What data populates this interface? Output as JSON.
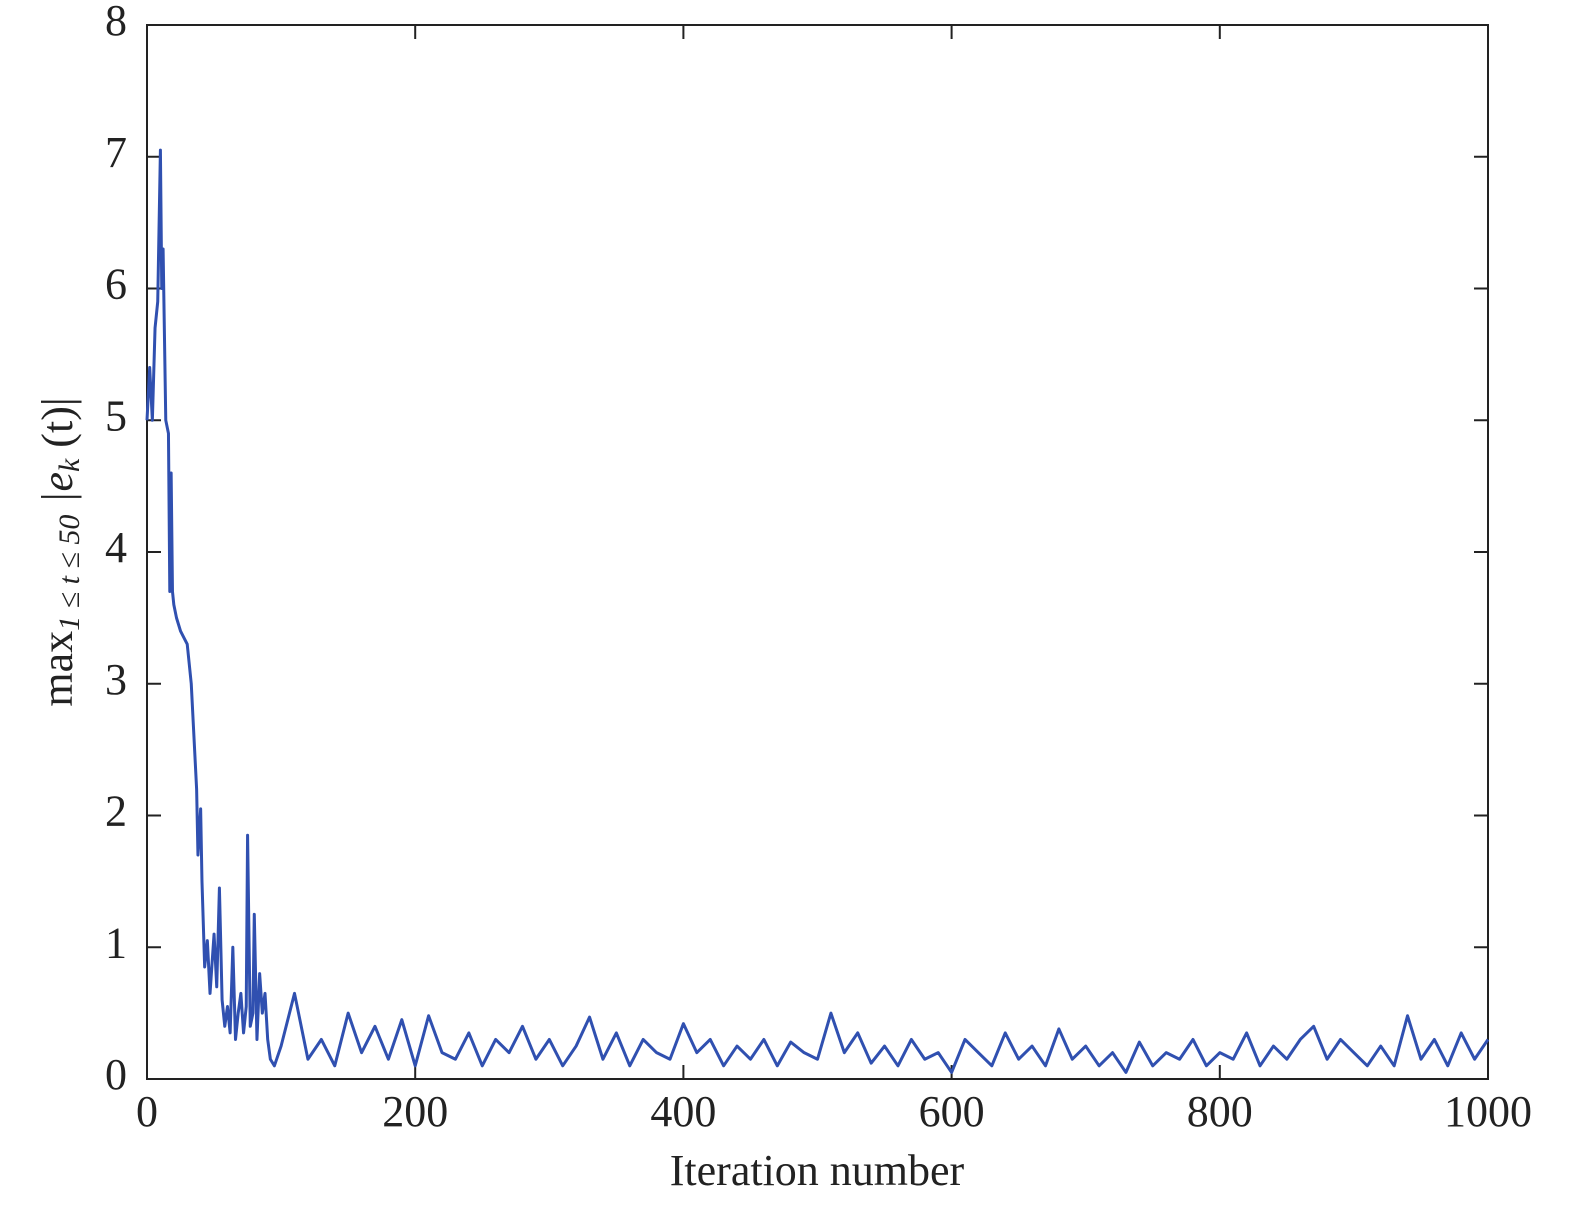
{
  "chart_data": {
    "type": "line",
    "xlabel": "Iteration number",
    "ylabel": [
      "max",
      "1 ≤ t ≤ 50",
      " |e",
      "k",
      " (t)|"
    ],
    "x": [
      0,
      2,
      4,
      6,
      8,
      10,
      11,
      12,
      14,
      16,
      17,
      18,
      19,
      20,
      22,
      25,
      30,
      33,
      35,
      37,
      38,
      40,
      41,
      43,
      45,
      47,
      50,
      52,
      54,
      56,
      58,
      60,
      62,
      64,
      66,
      68,
      70,
      72,
      74,
      75,
      77,
      79,
      80,
      82,
      84,
      86,
      88,
      90,
      92,
      95,
      100,
      110,
      120,
      130,
      140,
      150,
      160,
      170,
      180,
      190,
      200,
      210,
      220,
      230,
      240,
      250,
      260,
      270,
      280,
      290,
      300,
      310,
      320,
      330,
      340,
      350,
      360,
      370,
      380,
      390,
      400,
      410,
      420,
      430,
      440,
      450,
      460,
      470,
      480,
      490,
      500,
      510,
      520,
      530,
      540,
      550,
      560,
      570,
      580,
      590,
      600,
      610,
      620,
      630,
      640,
      650,
      660,
      670,
      680,
      690,
      700,
      710,
      720,
      730,
      740,
      750,
      760,
      770,
      780,
      790,
      800,
      810,
      820,
      830,
      840,
      850,
      860,
      870,
      880,
      890,
      900,
      910,
      920,
      930,
      940,
      950,
      960,
      970,
      980,
      990,
      1000
    ],
    "series": [
      {
        "color": "#3050b0",
        "values": [
          5.0,
          5.4,
          5.0,
          5.7,
          5.9,
          7.05,
          6.0,
          6.3,
          5.0,
          4.9,
          3.7,
          4.6,
          3.7,
          3.6,
          3.5,
          3.4,
          3.3,
          3.0,
          2.6,
          2.2,
          1.7,
          2.05,
          1.5,
          0.85,
          1.05,
          0.65,
          1.1,
          0.7,
          1.45,
          0.6,
          0.4,
          0.55,
          0.35,
          1.0,
          0.3,
          0.5,
          0.65,
          0.35,
          0.55,
          1.85,
          0.4,
          0.5,
          1.25,
          0.3,
          0.8,
          0.5,
          0.65,
          0.3,
          0.15,
          0.1,
          0.25,
          0.65,
          0.15,
          0.3,
          0.1,
          0.5,
          0.2,
          0.4,
          0.15,
          0.45,
          0.1,
          0.48,
          0.2,
          0.15,
          0.35,
          0.1,
          0.3,
          0.2,
          0.4,
          0.15,
          0.3,
          0.1,
          0.25,
          0.47,
          0.15,
          0.35,
          0.1,
          0.3,
          0.2,
          0.15,
          0.42,
          0.2,
          0.3,
          0.1,
          0.25,
          0.15,
          0.3,
          0.1,
          0.28,
          0.2,
          0.15,
          0.5,
          0.2,
          0.35,
          0.12,
          0.25,
          0.1,
          0.3,
          0.15,
          0.2,
          0.05,
          0.3,
          0.2,
          0.1,
          0.35,
          0.15,
          0.25,
          0.1,
          0.38,
          0.15,
          0.25,
          0.1,
          0.2,
          0.05,
          0.28,
          0.1,
          0.2,
          0.15,
          0.3,
          0.1,
          0.2,
          0.15,
          0.35,
          0.1,
          0.25,
          0.15,
          0.3,
          0.4,
          0.15,
          0.3,
          0.2,
          0.1,
          0.25,
          0.1,
          0.48,
          0.15,
          0.3,
          0.1,
          0.35,
          0.15,
          0.3
        ]
      }
    ],
    "xlim": [
      0,
      1000
    ],
    "xticks": [
      0,
      200,
      400,
      600,
      800,
      1000
    ],
    "ylim": [
      0,
      8
    ],
    "yticks": [
      0,
      1,
      2,
      3,
      4,
      5,
      6,
      7,
      8
    ]
  }
}
